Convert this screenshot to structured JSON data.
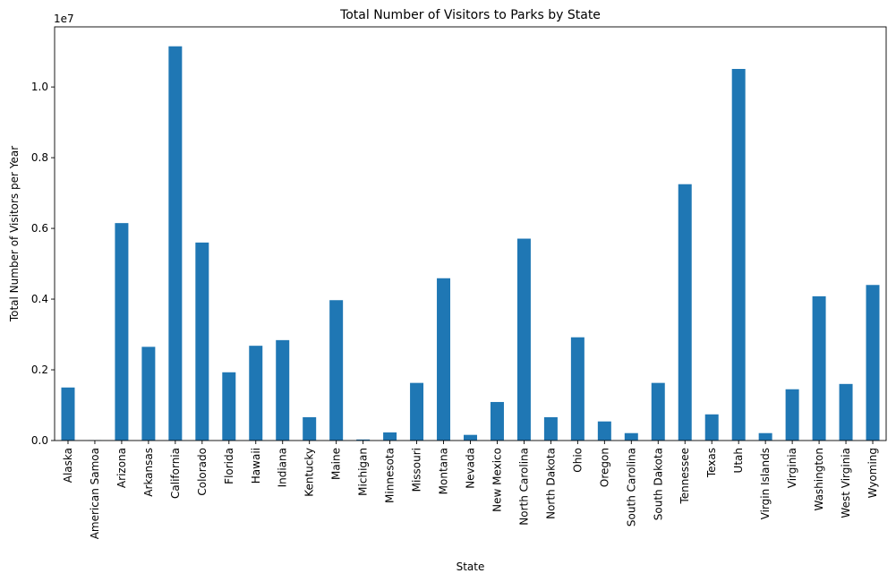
{
  "chart_data": {
    "type": "bar",
    "title": "Total Number of Visitors to Parks by State",
    "xlabel": "State",
    "ylabel": "Total Number of Visitors per Year",
    "offset_label": "1e7",
    "ylim": [
      0,
      11700000
    ],
    "yticks": [
      0,
      2000000,
      4000000,
      6000000,
      8000000,
      10000000
    ],
    "ytick_labels": [
      "0.0",
      "0.2",
      "0.4",
      "0.6",
      "0.8",
      "1.0"
    ],
    "grid": false,
    "legend": "none",
    "bar_color": "#1f77b4",
    "categories": [
      "Alaska",
      "American Samoa",
      "Arizona",
      "Arkansas",
      "California",
      "Colorado",
      "Florida",
      "Hawaii",
      "Indiana",
      "Kentucky",
      "Maine",
      "Michigan",
      "Minnesota",
      "Missouri",
      "Montana",
      "Nevada",
      "New Mexico",
      "North Carolina",
      "North Dakota",
      "Ohio",
      "Oregon",
      "South Carolina",
      "South Dakota",
      "Tennessee",
      "Texas",
      "Utah",
      "Virgin Islands",
      "Virginia",
      "Washington",
      "West Virginia",
      "Wyoming"
    ],
    "values": [
      1500000,
      10000,
      6150000,
      2650000,
      11150000,
      5600000,
      1930000,
      2680000,
      2840000,
      660000,
      3970000,
      30000,
      230000,
      1630000,
      4590000,
      160000,
      1090000,
      5710000,
      660000,
      2920000,
      540000,
      210000,
      1630000,
      7250000,
      740000,
      10510000,
      210000,
      1450000,
      4080000,
      1600000,
      4400000
    ]
  }
}
